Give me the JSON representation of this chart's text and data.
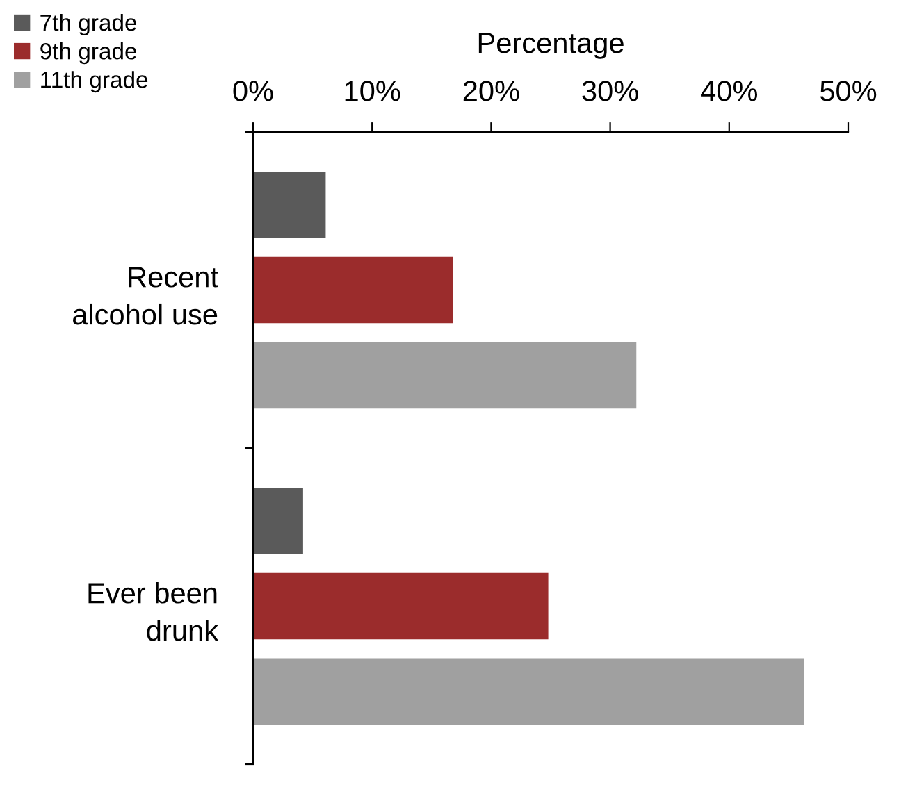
{
  "chart_data": {
    "type": "bar",
    "orientation": "horizontal",
    "xlabel": "Percentage",
    "categories": [
      "Recent\nalcohol use",
      "Ever been\ndrunk"
    ],
    "series": [
      {
        "name": "7th grade",
        "color": "#5a5a5a",
        "values": [
          6.1,
          4.2
        ]
      },
      {
        "name": "9th grade",
        "color": "#9b2c2c",
        "values": [
          16.8,
          24.8
        ]
      },
      {
        "name": "11th grade",
        "color": "#a0a0a0",
        "values": [
          32.2,
          46.3
        ]
      }
    ],
    "xlim": [
      0,
      50
    ],
    "xticks": [
      {
        "value": 0,
        "label": "0%"
      },
      {
        "value": 10,
        "label": "10%"
      },
      {
        "value": 20,
        "label": "20%"
      },
      {
        "value": 30,
        "label": "30%"
      },
      {
        "value": 40,
        "label": "40%"
      },
      {
        "value": 50,
        "label": "50%"
      }
    ],
    "grid": false,
    "legend": "top left"
  }
}
